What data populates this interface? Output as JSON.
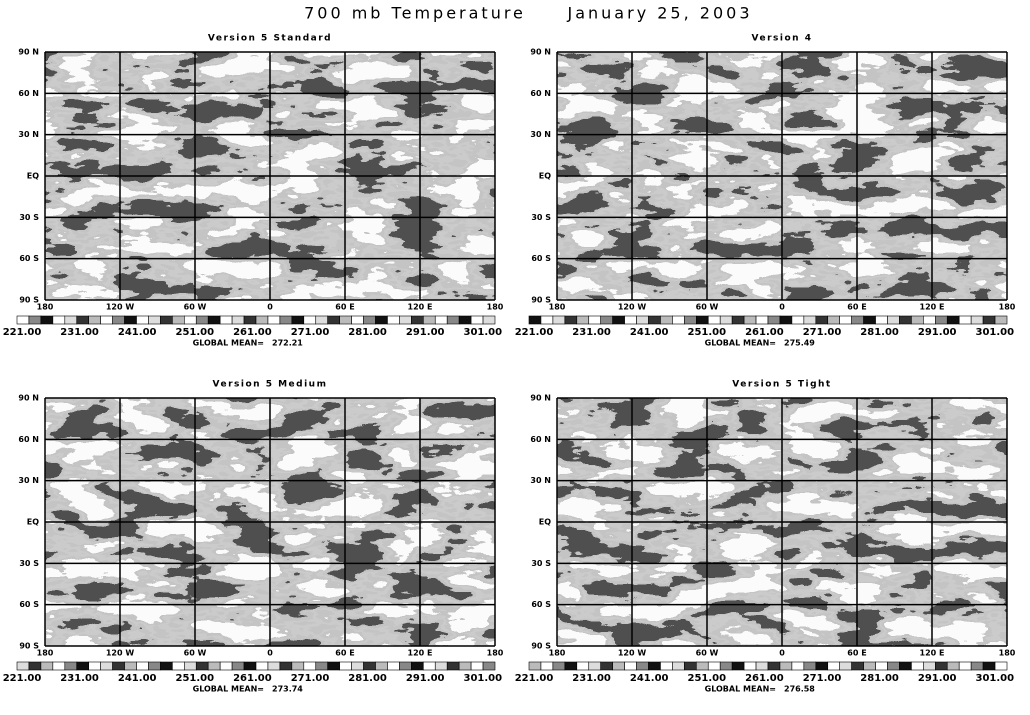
{
  "title": "700 mb Temperature",
  "date": "January 25, 2003",
  "panels": [
    {
      "title": "Version 5 Standard",
      "global_mean_label": "GLOBAL MEAN=",
      "global_mean": "272.21"
    },
    {
      "title": "Version 4",
      "global_mean_label": "GLOBAL MEAN=",
      "global_mean": "275.49"
    },
    {
      "title": "Version 5 Medium",
      "global_mean_label": "GLOBAL MEAN=",
      "global_mean": "273.74"
    },
    {
      "title": "Version 5 Tight",
      "global_mean_label": "GLOBAL MEAN=",
      "global_mean": "276.58"
    }
  ],
  "lat_labels": [
    "90 N",
    "60 N",
    "30 N",
    "EQ",
    "30 S",
    "60 S",
    "90 S"
  ],
  "lon_labels": [
    "180",
    "120 W",
    "60 W",
    "0",
    "60 E",
    "120 E",
    "180"
  ],
  "colorbar_labels": [
    "221.00",
    "231.00",
    "241.00",
    "251.00",
    "261.00",
    "271.00",
    "281.00",
    "291.00",
    "301.00"
  ]
}
